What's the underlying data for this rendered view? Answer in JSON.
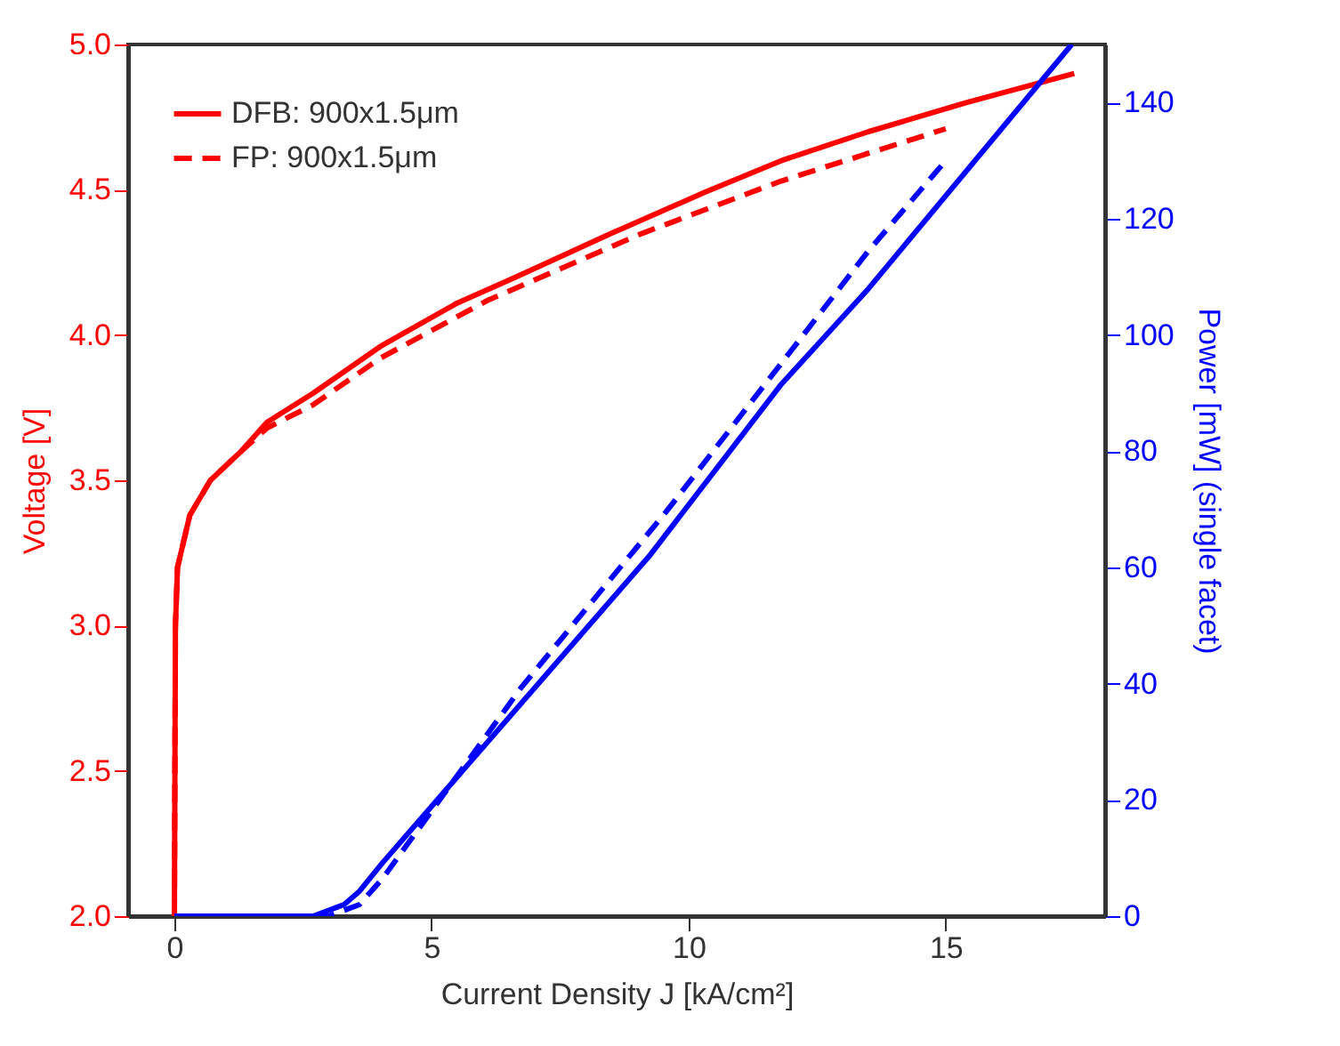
{
  "chart_data": {
    "type": "line",
    "xlabel": "Current Density J [kA/cm²]",
    "ylabel": "Voltage [V]",
    "y2label": "Power [mW] (single facet)",
    "xlim": [
      -0.9,
      18.1
    ],
    "xticks": [
      0,
      5,
      10,
      15
    ],
    "ylim": [
      2,
      5
    ],
    "yticks": [
      {
        "value": 2,
        "label": "2.0"
      },
      {
        "value": 2.5,
        "label": "2.5"
      },
      {
        "value": 3,
        "label": "3.0"
      },
      {
        "value": 3.5,
        "label": "3.5"
      },
      {
        "value": 4,
        "label": "4.0"
      },
      {
        "value": 4.5,
        "label": "4.5"
      },
      {
        "value": 5,
        "label": "5.0"
      }
    ],
    "y2lim": [
      0,
      150
    ],
    "y2ticks": [
      0,
      20,
      40,
      60,
      80,
      100,
      120,
      140
    ],
    "legend": "top left",
    "grid": false,
    "series": [
      {
        "name": "DFB: 900x1.5μm",
        "color": "#ff0000",
        "line_style": "solid",
        "x": [
          0,
          0.02,
          0.06,
          0.3,
          0.7,
          1.3,
          1.8,
          2.7,
          4,
          5.5,
          6.65,
          8.5,
          10.3,
          11.8,
          13.5,
          15.4,
          17.5
        ],
        "values": [
          2.0,
          3.0,
          3.2,
          3.38,
          3.5,
          3.6,
          3.7,
          3.8,
          3.96,
          4.11,
          4.2,
          4.35,
          4.49,
          4.6,
          4.7,
          4.8,
          4.9
        ]
      },
      {
        "name": "FP: 900x1.5μm",
        "color": "#ff0000",
        "line_style": "dashed",
        "x": [
          0,
          0.02,
          0.06,
          0.3,
          0.7,
          1.3,
          1.8,
          2.7,
          4,
          6.1,
          9.1,
          11.8,
          15
        ],
        "values": [
          2.0,
          3.0,
          3.2,
          3.38,
          3.5,
          3.6,
          3.68,
          3.76,
          3.92,
          4.12,
          4.35,
          4.53,
          4.71
        ]
      },
      {
        "color": "#0000ff",
        "line_style": "solid",
        "axis": "y2",
        "x": [
          0,
          2.7,
          3.3,
          3.6,
          4.05,
          9.23,
          11.8,
          13.5,
          17.45
        ],
        "values": [
          0,
          0,
          2,
          4.3,
          9.2,
          61.9,
          91.5,
          108,
          150
        ]
      },
      {
        "color": "#0000ff",
        "line_style": "dashed",
        "axis": "y2",
        "x": [
          0,
          3.0,
          3.6,
          4.05,
          6.75,
          9.6,
          13.5,
          15
        ],
        "values": [
          0,
          0,
          2,
          6.5,
          39.4,
          70,
          114.5,
          130
        ]
      }
    ]
  }
}
